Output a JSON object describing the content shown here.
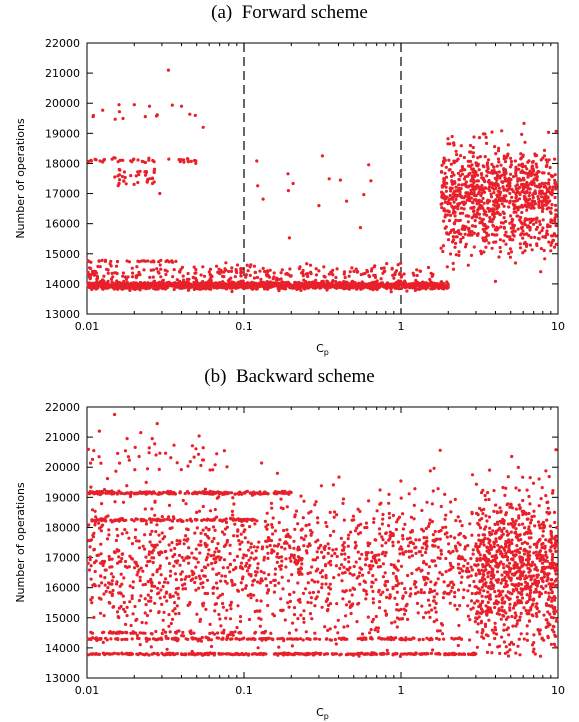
{
  "chart_data": [
    {
      "type": "scatter",
      "panel_label": "(a)",
      "title": "Forward scheme",
      "xlabel": "C",
      "xlabel_sub": "p",
      "ylabel": "Number of operations",
      "xscale": "log",
      "xlim": [
        0.01,
        10
      ],
      "ylim": [
        13000,
        22000
      ],
      "xticks": [
        "0.01",
        "0.1",
        "1",
        "10"
      ],
      "yticks": [
        "13000",
        "14000",
        "15000",
        "16000",
        "17000",
        "18000",
        "19000",
        "20000",
        "21000",
        "22000"
      ],
      "marker_color": "#e8202a",
      "vlines": [
        0.1,
        1
      ],
      "grid": false,
      "point_clusters": [
        {
          "x_range": [
            0.01,
            2.0
          ],
          "y_center": 13950,
          "y_spread": 120,
          "count": 1600
        },
        {
          "x_range": [
            0.01,
            1.6
          ],
          "y_center": 14350,
          "y_spread": 300,
          "count": 260
        },
        {
          "x_range": [
            0.01,
            0.04
          ],
          "y_center": 14750,
          "y_spread": 40,
          "count": 30
        },
        {
          "x_range": [
            0.01,
            0.05
          ],
          "y_center": 18100,
          "y_spread": 80,
          "count": 40
        },
        {
          "x_range": [
            0.015,
            0.03
          ],
          "y_center": 17500,
          "y_spread": 500,
          "count": 40
        },
        {
          "x_range": [
            0.01,
            0.05
          ],
          "y_center": 19700,
          "y_spread": 300,
          "count": 12
        },
        {
          "x_range": [
            0.1,
            1.0
          ],
          "y_center": 17000,
          "y_spread": 1500,
          "count": 14
        },
        {
          "x_range": [
            1.8,
            10
          ],
          "y_center": 17000,
          "y_spread": 1600,
          "count": 900
        },
        {
          "x_range": [
            2.0,
            10
          ],
          "y_center": 15500,
          "y_spread": 900,
          "count": 120
        }
      ],
      "notable_points": [
        {
          "x": 0.033,
          "y": 21100
        },
        {
          "x": 0.016,
          "y": 19950
        },
        {
          "x": 0.02,
          "y": 19950
        },
        {
          "x": 0.025,
          "y": 19900
        },
        {
          "x": 0.04,
          "y": 19900
        },
        {
          "x": 0.055,
          "y": 19200
        },
        {
          "x": 0.45,
          "y": 16750
        },
        {
          "x": 0.3,
          "y": 16600
        }
      ]
    },
    {
      "type": "scatter",
      "panel_label": "(b)",
      "title": "Backward scheme",
      "xlabel": "C",
      "xlabel_sub": "p",
      "ylabel": "Number of operations",
      "xscale": "log",
      "xlim": [
        0.01,
        10
      ],
      "ylim": [
        13000,
        22000
      ],
      "xticks": [
        "0.01",
        "0.1",
        "1",
        "10"
      ],
      "yticks": [
        "13000",
        "14000",
        "15000",
        "16000",
        "17000",
        "18000",
        "19000",
        "20000",
        "21000",
        "22000"
      ],
      "marker_color": "#e8202a",
      "grid": false,
      "point_clusters": [
        {
          "x_range": [
            0.01,
            3.0
          ],
          "y_center": 13800,
          "y_spread": 30,
          "count": 320
        },
        {
          "x_range": [
            0.01,
            2.5
          ],
          "y_center": 14300,
          "y_spread": 40,
          "count": 200
        },
        {
          "x_range": [
            0.01,
            0.15
          ],
          "y_center": 14500,
          "y_spread": 40,
          "count": 60
        },
        {
          "x_range": [
            0.01,
            0.2
          ],
          "y_center": 19150,
          "y_spread": 50,
          "count": 220
        },
        {
          "x_range": [
            0.01,
            0.12
          ],
          "y_center": 18250,
          "y_spread": 50,
          "count": 120
        },
        {
          "x_range": [
            0.01,
            10
          ],
          "y_center": 16700,
          "y_spread": 2400,
          "count": 1700
        },
        {
          "x_range": [
            3.0,
            10
          ],
          "y_center": 16500,
          "y_spread": 2500,
          "count": 650
        },
        {
          "x_range": [
            0.01,
            0.08
          ],
          "y_center": 20300,
          "y_spread": 500,
          "count": 35
        }
      ],
      "notable_points": [
        {
          "x": 0.015,
          "y": 21750
        },
        {
          "x": 0.028,
          "y": 21450
        },
        {
          "x": 0.012,
          "y": 21200
        },
        {
          "x": 0.022,
          "y": 21150
        },
        {
          "x": 0.018,
          "y": 20950
        },
        {
          "x": 0.026,
          "y": 20950
        },
        {
          "x": 0.055,
          "y": 20650
        },
        {
          "x": 0.075,
          "y": 20550
        }
      ]
    }
  ]
}
